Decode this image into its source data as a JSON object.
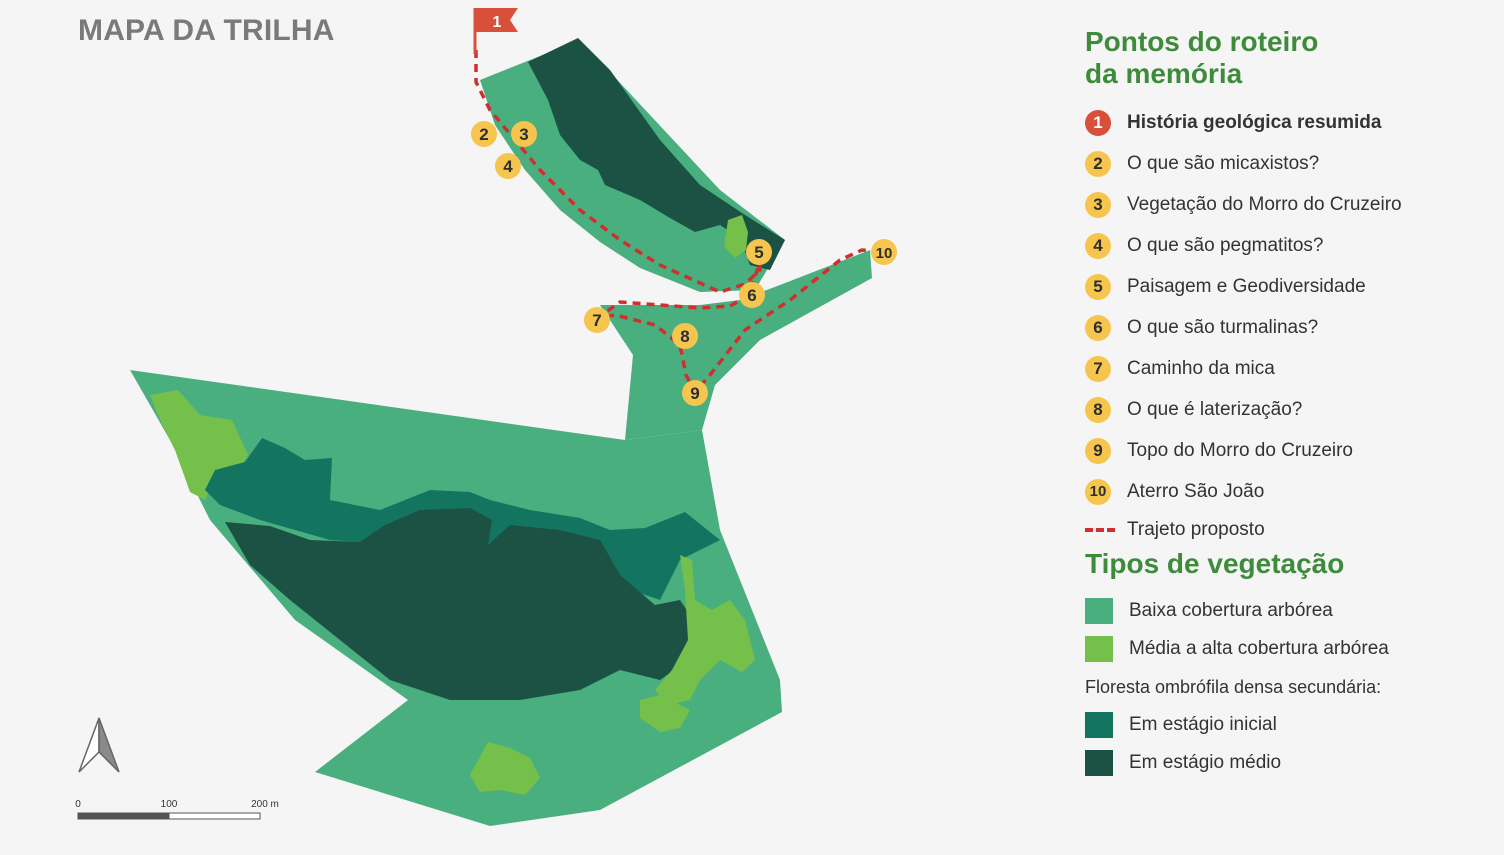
{
  "title": "MAPA DA TRILHA",
  "legend": {
    "points_title": "Pontos do roteiro\nda memória",
    "points": [
      {
        "num": "1",
        "label": "História geológica resumida"
      },
      {
        "num": "2",
        "label": "O que são micaxistos?"
      },
      {
        "num": "3",
        "label": "Vegetação do Morro do Cruzeiro"
      },
      {
        "num": "4",
        "label": "O que são pegmatitos?"
      },
      {
        "num": "5",
        "label": "Paisagem e Geodiversidade"
      },
      {
        "num": "6",
        "label": "O que são turmalinas?"
      },
      {
        "num": "7",
        "label": "Caminho da mica"
      },
      {
        "num": "8",
        "label": "O que é laterização?"
      },
      {
        "num": "9",
        "label": "Topo do Morro do Cruzeiro"
      },
      {
        "num": "10",
        "label": "Aterro São João"
      }
    ],
    "route_label": "Trajeto proposto",
    "vegetation_title": "Tipos de vegetação",
    "vegetation": [
      {
        "label": "Baixa cobertura arbórea",
        "color": "#4aaf7f"
      },
      {
        "label": "Média a alta cobertura arbórea",
        "color": "#74c04a"
      }
    ],
    "forest_note": "Floresta ombrófila densa secundária:",
    "forest": [
      {
        "label": "Em estágio inicial",
        "color": "#137560"
      },
      {
        "label": "Em estágio médio",
        "color": "#1b5244"
      }
    ]
  },
  "scale": {
    "ticks": [
      "0",
      "100",
      "200 m"
    ]
  },
  "colors": {
    "route": "#cf2f2f",
    "marker": "#f6c54e",
    "start_marker": "#d9503a",
    "title": "#3f8b3c"
  },
  "icons": {
    "start": "flag-icon",
    "north": "north-arrow-icon"
  }
}
